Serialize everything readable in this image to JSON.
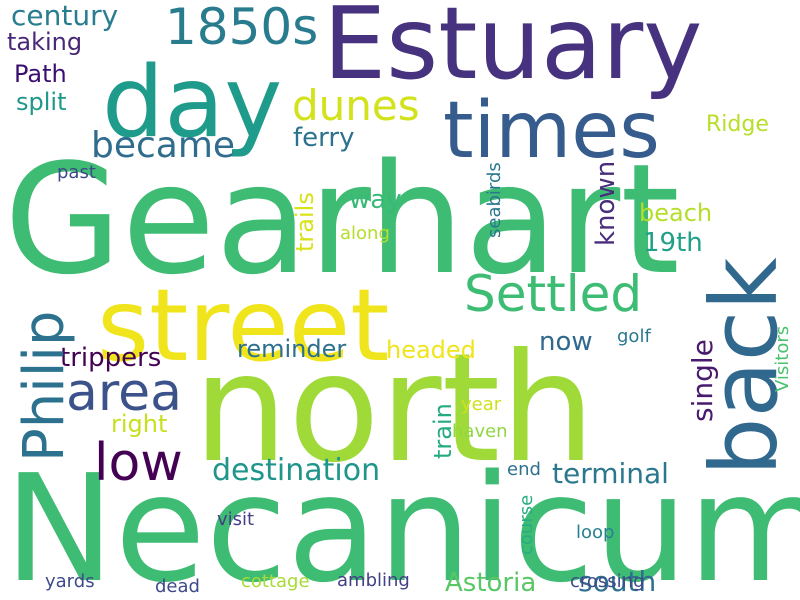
{
  "words": [
    {
      "text": "Gearhart",
      "color": "#3fbc73"
    },
    {
      "text": "Necanicum",
      "color": "#3fbc73"
    },
    {
      "text": "north",
      "color": "#a0da39"
    },
    {
      "text": "Estuary",
      "color": "#46327e"
    },
    {
      "text": "street",
      "color": "#f0e51c"
    },
    {
      "text": "back",
      "color": "#31688e"
    },
    {
      "text": "day",
      "color": "#1e9b8a"
    },
    {
      "text": "times",
      "color": "#365c8d"
    },
    {
      "text": "Philip",
      "color": "#2c728e"
    },
    {
      "text": "Settled",
      "color": "#3dbc74"
    },
    {
      "text": "1850s",
      "color": "#287c8e"
    },
    {
      "text": "area",
      "color": "#3b528b"
    },
    {
      "text": "low",
      "color": "#440154"
    },
    {
      "text": "dunes",
      "color": "#d2e21b"
    },
    {
      "text": "became",
      "color": "#2f6c8e"
    },
    {
      "text": "destination",
      "color": "#1f958b"
    },
    {
      "text": "century",
      "color": "#287d8e"
    },
    {
      "text": "single",
      "color": "#481a6c"
    },
    {
      "text": "trippers",
      "color": "#440154"
    },
    {
      "text": "terminal",
      "color": "#2a778e"
    },
    {
      "text": "reminder",
      "color": "#2d708e"
    },
    {
      "text": "south",
      "color": "#2e6e8e"
    },
    {
      "text": "Astoria",
      "color": "#58c765"
    },
    {
      "text": "headed",
      "color": "#f0e51c"
    },
    {
      "text": "known",
      "color": "#472d7b"
    },
    {
      "text": "taking",
      "color": "#482878"
    },
    {
      "text": "Path",
      "color": "#3b0f70"
    },
    {
      "text": "ferry",
      "color": "#2c728e"
    },
    {
      "text": "trails",
      "color": "#d8e219"
    },
    {
      "text": "way",
      "color": "#38b977"
    },
    {
      "text": "beach",
      "color": "#b5de2b"
    },
    {
      "text": "19th",
      "color": "#1fa088"
    },
    {
      "text": "train",
      "color": "#25ab82"
    },
    {
      "text": "now",
      "color": "#31688e"
    },
    {
      "text": "Ridge",
      "color": "#b8de29"
    },
    {
      "text": "right",
      "color": "#c8e020"
    },
    {
      "text": "split",
      "color": "#1f988b"
    },
    {
      "text": "Visitors",
      "color": "#4ac16d"
    },
    {
      "text": "seabirds",
      "color": "#2a788e"
    },
    {
      "text": "golf",
      "color": "#2a788e"
    },
    {
      "text": "along",
      "color": "#b5de2b"
    },
    {
      "text": "past",
      "color": "#3e4989"
    },
    {
      "text": "year",
      "color": "#d0e11c"
    },
    {
      "text": "haven",
      "color": "#90d743"
    },
    {
      "text": "end",
      "color": "#2d718e"
    },
    {
      "text": "course",
      "color": "#27ad81"
    },
    {
      "text": "visit",
      "color": "#433e85"
    },
    {
      "text": "loop",
      "color": "#26828e"
    },
    {
      "text": "yards",
      "color": "#3e4a89"
    },
    {
      "text": "dead",
      "color": "#3e4a89"
    },
    {
      "text": "cottage",
      "color": "#a8db34"
    },
    {
      "text": "ambling",
      "color": "#424086"
    },
    {
      "text": "crossing",
      "color": "#3e4989"
    }
  ]
}
